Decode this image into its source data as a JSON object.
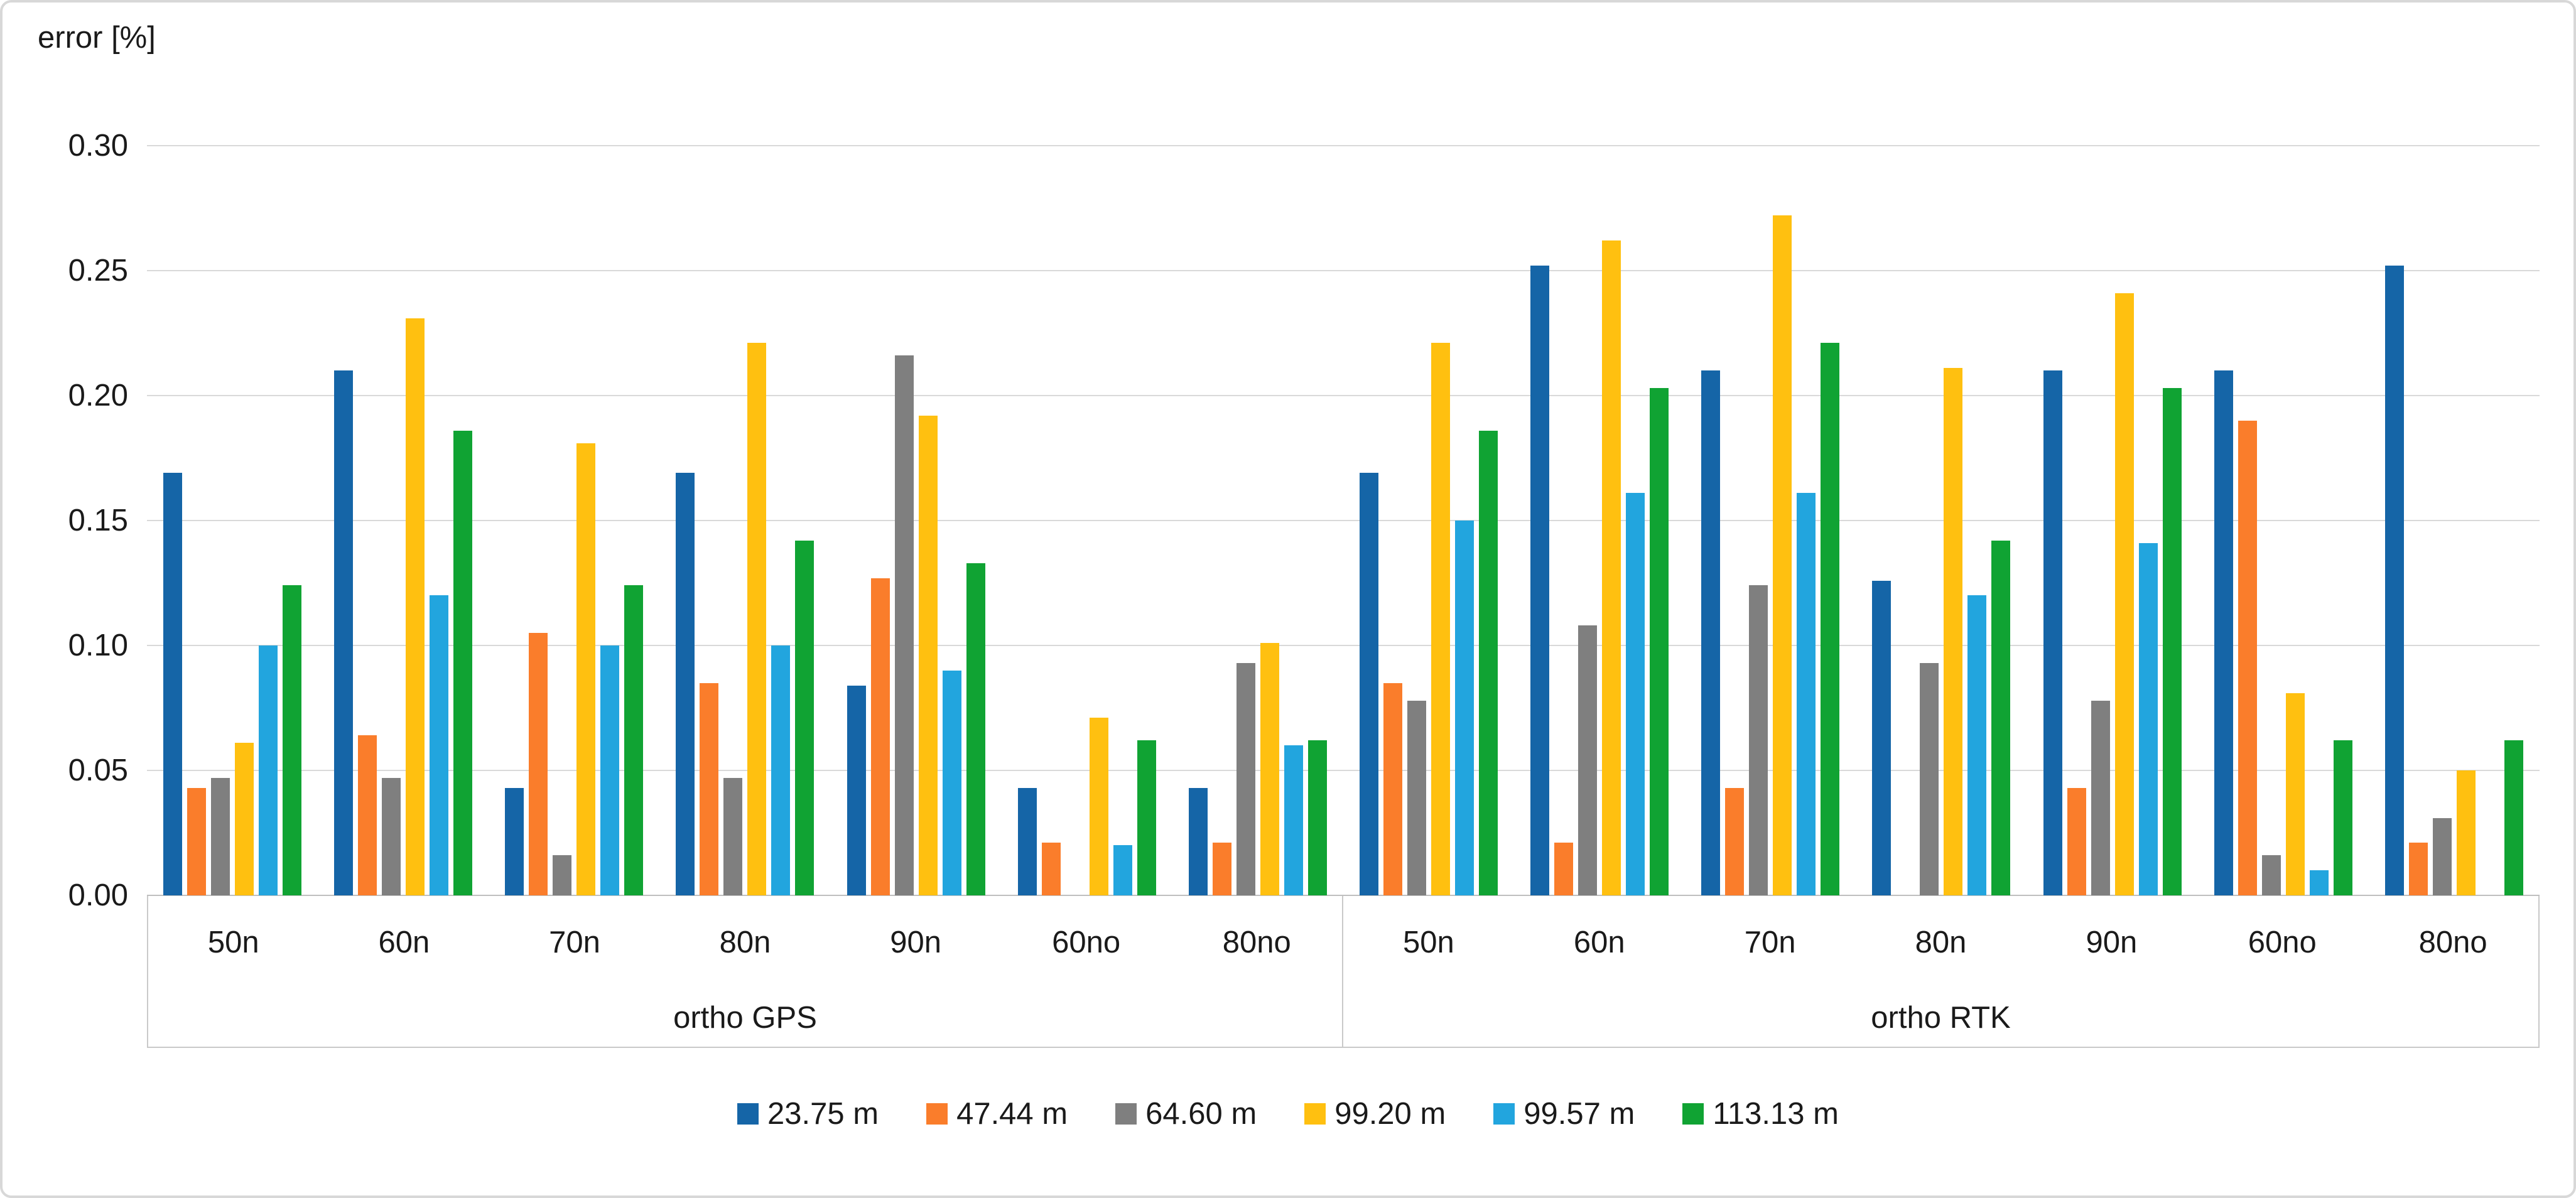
{
  "chart_data": {
    "type": "bar",
    "title": "",
    "ylabel": "error [%]",
    "xlabel": "",
    "ylim": [
      0,
      0.3
    ],
    "ytick_step": 0.05,
    "ytick_labels": [
      "0.00",
      "0.05",
      "0.10",
      "0.15",
      "0.20",
      "0.25",
      "0.30"
    ],
    "grid": true,
    "legend_position": "bottom-center",
    "series": [
      {
        "name": "23.75 m",
        "color": "#1565A7"
      },
      {
        "name": "47.44 m",
        "color": "#FA7D2B"
      },
      {
        "name": "64.60 m",
        "color": "#7F7F7F"
      },
      {
        "name": "99.20 m",
        "color": "#FFC010"
      },
      {
        "name": "99.57 m",
        "color": "#22A5DE"
      },
      {
        "name": "113.13 m",
        "color": "#10A333"
      }
    ],
    "panels": [
      {
        "label": "ortho GPS",
        "categories": [
          "50n",
          "60n",
          "70n",
          "80n",
          "90n",
          "60no",
          "80no"
        ],
        "values": [
          [
            0.169,
            0.043,
            0.047,
            0.061,
            0.1,
            0.124
          ],
          [
            0.21,
            0.064,
            0.047,
            0.231,
            0.12,
            0.186
          ],
          [
            0.043,
            0.105,
            0.016,
            0.181,
            0.1,
            0.124
          ],
          [
            0.169,
            0.085,
            0.047,
            0.221,
            0.1,
            0.142
          ],
          [
            0.084,
            0.127,
            0.216,
            0.192,
            0.09,
            0.133
          ],
          [
            0.043,
            0.021,
            0,
            0.071,
            0.02,
            0.062
          ],
          [
            0.043,
            0.021,
            0.093,
            0.101,
            0.06,
            0.062
          ]
        ]
      },
      {
        "label": "ortho RTK",
        "categories": [
          "50n",
          "60n",
          "70n",
          "80n",
          "90n",
          "60no",
          "80no"
        ],
        "values": [
          [
            0.169,
            0.085,
            0.078,
            0.221,
            0.15,
            0.186
          ],
          [
            0.252,
            0.021,
            0.108,
            0.262,
            0.161,
            0.203
          ],
          [
            0.21,
            0.043,
            0.124,
            0.272,
            0.161,
            0.221
          ],
          [
            0.126,
            0,
            0.093,
            0.211,
            0.12,
            0.142
          ],
          [
            0.21,
            0.043,
            0.078,
            0.241,
            0.141,
            0.203
          ],
          [
            0.21,
            0.19,
            0.016,
            0.081,
            0.01,
            0.062
          ],
          [
            0.252,
            0.021,
            0.031,
            0.05,
            0,
            0.062
          ]
        ]
      }
    ]
  }
}
